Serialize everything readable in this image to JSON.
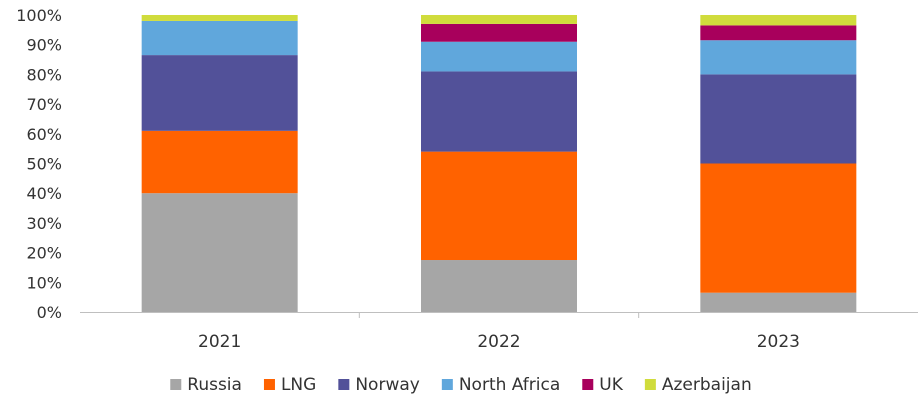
{
  "chart_data": {
    "type": "bar",
    "stacked": true,
    "categories": [
      "2021",
      "2022",
      "2023"
    ],
    "y_ticks": [
      "0%",
      "10%",
      "20%",
      "30%",
      "40%",
      "50%",
      "60%",
      "70%",
      "80%",
      "90%",
      "100%"
    ],
    "ylim": [
      0,
      100
    ],
    "grid": false,
    "legend_position": "bottom",
    "series": [
      {
        "name": "Russia",
        "color": "#a6a6a6",
        "values": [
          40,
          17.5,
          6.5
        ]
      },
      {
        "name": "LNG",
        "color": "#ff6200",
        "values": [
          21,
          36.5,
          43.5
        ]
      },
      {
        "name": "Norway",
        "color": "#525199",
        "values": [
          25.5,
          27,
          30
        ]
      },
      {
        "name": "North Africa",
        "color": "#60a7dc",
        "values": [
          11.5,
          10,
          11.5
        ]
      },
      {
        "name": "UK",
        "color": "#a8005c",
        "values": [
          0,
          6,
          5
        ]
      },
      {
        "name": "Azerbaijan",
        "color": "#d0dc3c",
        "values": [
          2,
          3,
          3.5
        ]
      }
    ]
  }
}
